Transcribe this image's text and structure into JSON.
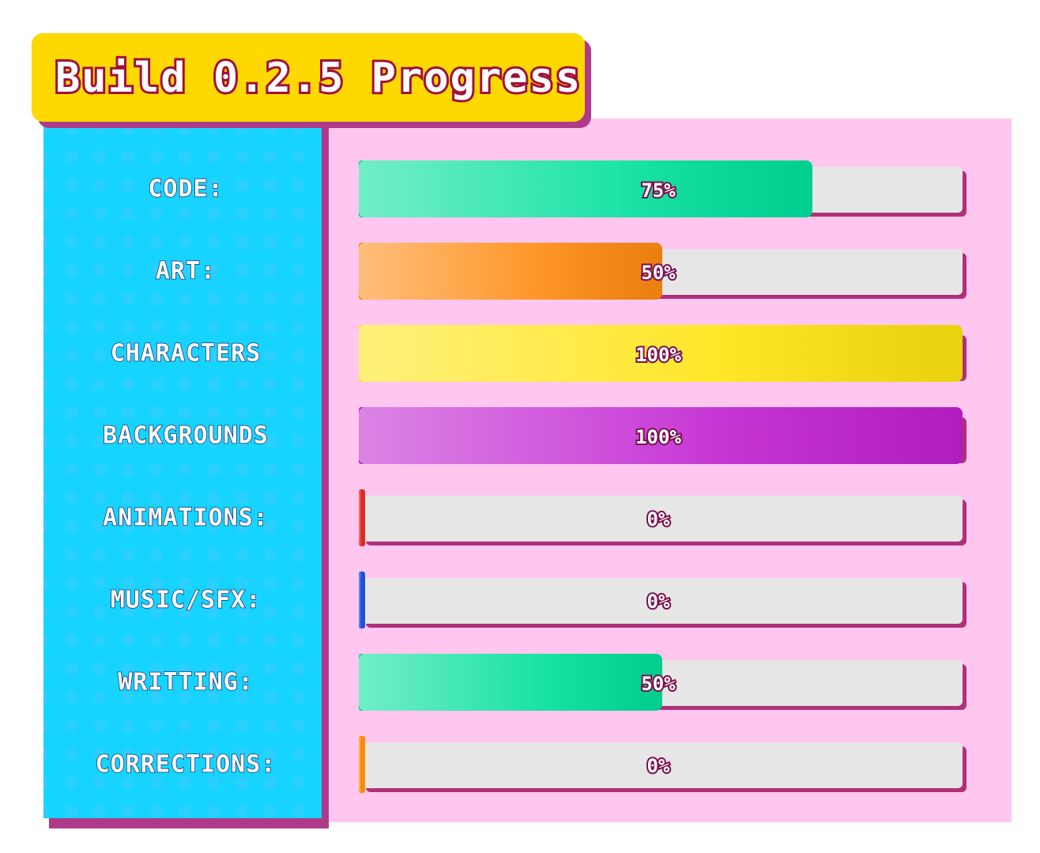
{
  "chart_data": {
    "type": "bar",
    "orientation": "horizontal",
    "title": "Build 0.2.5 Progress",
    "categories": [
      "CODE:",
      "ART:",
      "CHARACTERS",
      "BACKGROUNDS",
      "ANIMATIONS:",
      "MUSIC/SFX:",
      "WRITTING:",
      "CORRECTIONS:"
    ],
    "values": [
      75,
      50,
      100,
      100,
      0,
      0,
      50,
      0
    ],
    "value_labels": [
      "75%",
      "50%",
      "100%",
      "100%",
      "0%",
      "0%",
      "50%",
      "0%"
    ],
    "colors": [
      "#00e09a",
      "#ff8a10",
      "#ffe410",
      "#c020d0",
      "#e02a20",
      "#1a50e0",
      "#00e09a",
      "#ff8a00"
    ],
    "xlim": [
      0,
      100
    ]
  }
}
